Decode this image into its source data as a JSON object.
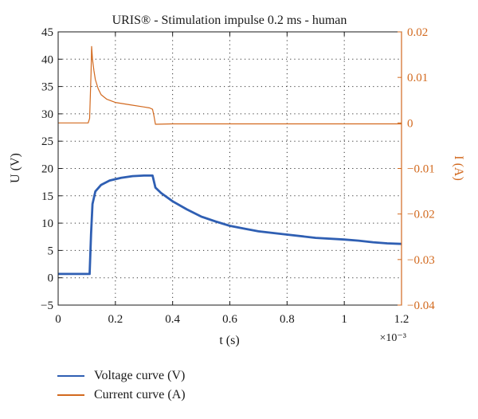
{
  "chart_data": {
    "type": "line",
    "title": "URIS® - Stimulation impulse 0.2 ms - human",
    "xlabel": "t (s)",
    "x_multiplier": "×10⁻³",
    "ylabel_left": "U (V)",
    "ylabel_right": "I (A)",
    "xlim": [
      0,
      1.2
    ],
    "ylim_left": [
      -5,
      45
    ],
    "ylim_right": [
      -0.04,
      0.02
    ],
    "x_ticks": [
      "0",
      "0.2",
      "0.4",
      "0.6",
      "0.8",
      "1",
      "1.2"
    ],
    "y_left_ticks": [
      "−5",
      "0",
      "5",
      "10",
      "15",
      "20",
      "25",
      "30",
      "35",
      "40",
      "45"
    ],
    "y_right_ticks": [
      "−0.04",
      "−0.03",
      "−0.02",
      "−0.01",
      "0",
      "0.01",
      "0.02"
    ],
    "grid": true,
    "legend_position": "bottom-left",
    "series": [
      {
        "name": "Voltage curve (V)",
        "axis": "left",
        "color": "#2f5fb3",
        "points": [
          [
            0,
            0.7
          ],
          [
            0.105,
            0.7
          ],
          [
            0.11,
            0.7
          ],
          [
            0.115,
            8
          ],
          [
            0.12,
            13.5
          ],
          [
            0.13,
            15.8
          ],
          [
            0.15,
            17
          ],
          [
            0.18,
            17.8
          ],
          [
            0.22,
            18.3
          ],
          [
            0.26,
            18.6
          ],
          [
            0.3,
            18.7
          ],
          [
            0.33,
            18.7
          ],
          [
            0.34,
            16.5
          ],
          [
            0.36,
            15.5
          ],
          [
            0.4,
            14
          ],
          [
            0.45,
            12.5
          ],
          [
            0.5,
            11.2
          ],
          [
            0.55,
            10.3
          ],
          [
            0.6,
            9.5
          ],
          [
            0.65,
            9
          ],
          [
            0.7,
            8.5
          ],
          [
            0.8,
            7.9
          ],
          [
            0.9,
            7.3
          ],
          [
            1.0,
            7
          ],
          [
            1.05,
            6.8
          ],
          [
            1.1,
            6.5
          ],
          [
            1.15,
            6.3
          ],
          [
            1.2,
            6.2
          ]
        ]
      },
      {
        "name": "Current curve (A)",
        "axis": "right",
        "color": "#d2691e",
        "points": [
          [
            0,
            0
          ],
          [
            0.105,
            0
          ],
          [
            0.11,
            0.001
          ],
          [
            0.112,
            0.005
          ],
          [
            0.115,
            0.011
          ],
          [
            0.117,
            0.0168
          ],
          [
            0.12,
            0.014
          ],
          [
            0.125,
            0.0115
          ],
          [
            0.13,
            0.0095
          ],
          [
            0.14,
            0.0075
          ],
          [
            0.15,
            0.0062
          ],
          [
            0.17,
            0.0052
          ],
          [
            0.2,
            0.0045
          ],
          [
            0.25,
            0.004
          ],
          [
            0.3,
            0.0035
          ],
          [
            0.32,
            0.0033
          ],
          [
            0.33,
            0.003
          ],
          [
            0.335,
            0.0015
          ],
          [
            0.34,
            -0.0003
          ],
          [
            0.4,
            -0.0002
          ],
          [
            0.6,
            -0.0002
          ],
          [
            0.8,
            -0.0002
          ],
          [
            1.0,
            -0.0002
          ],
          [
            1.2,
            -0.0002
          ]
        ]
      }
    ]
  }
}
